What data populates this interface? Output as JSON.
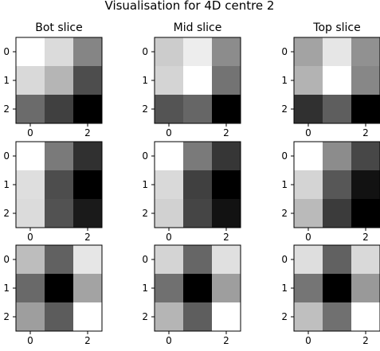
{
  "suptitle": "Visualisation for 4D centre 2",
  "chart_data": {
    "type": "heatmap",
    "colormap": "gray",
    "scale": [
      0,
      1
    ],
    "column_titles": [
      "Bot slice",
      "Mid slice",
      "Top slice"
    ],
    "tick_labels": [
      "0",
      "1",
      "2"
    ],
    "visible_x_ticks": [
      "0",
      "2"
    ],
    "panels": [
      [
        [
          [
            1.0,
            0.86,
            0.52
          ],
          [
            0.85,
            0.71,
            0.3
          ],
          [
            0.42,
            0.25,
            0.0
          ]
        ],
        [
          [
            0.8,
            0.93,
            0.55
          ],
          [
            0.83,
            1.0,
            0.45
          ],
          [
            0.33,
            0.4,
            0.0
          ]
        ],
        [
          [
            0.64,
            0.9,
            0.57
          ],
          [
            0.7,
            1.0,
            0.53
          ],
          [
            0.19,
            0.37,
            0.0
          ]
        ]
      ],
      [
        [
          [
            1.0,
            0.48,
            0.19
          ],
          [
            0.87,
            0.3,
            0.0
          ],
          [
            0.86,
            0.32,
            0.1
          ]
        ],
        [
          [
            1.0,
            0.48,
            0.21
          ],
          [
            0.85,
            0.25,
            0.0
          ],
          [
            0.82,
            0.27,
            0.07
          ]
        ],
        [
          [
            1.0,
            0.55,
            0.28
          ],
          [
            0.83,
            0.34,
            0.07
          ],
          [
            0.73,
            0.23,
            0.0
          ]
        ]
      ],
      [
        [
          [
            0.74,
            0.38,
            0.9
          ],
          [
            0.41,
            0.0,
            0.64
          ],
          [
            0.62,
            0.36,
            1.0
          ]
        ],
        [
          [
            0.83,
            0.4,
            0.88
          ],
          [
            0.44,
            0.0,
            0.62
          ],
          [
            0.71,
            0.37,
            1.0
          ]
        ],
        [
          [
            0.87,
            0.38,
            0.85
          ],
          [
            0.46,
            0.0,
            0.6
          ],
          [
            0.75,
            0.44,
            1.0
          ]
        ]
      ]
    ]
  }
}
